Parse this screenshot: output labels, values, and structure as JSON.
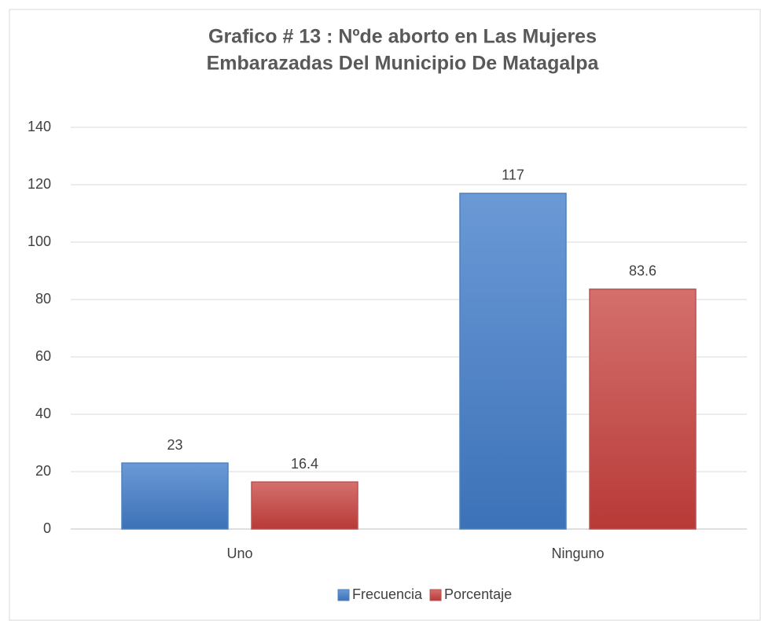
{
  "chart_data": {
    "type": "bar",
    "title": [
      "Grafico # 13 :  Nºde aborto en Las Mujeres",
      "Embarazadas Del Municipio De Matagalpa"
    ],
    "categories": [
      "Uno",
      "Ninguno"
    ],
    "series": [
      {
        "name": "Frecuencia",
        "color": "#4f81bd",
        "values": [
          23,
          117
        ]
      },
      {
        "name": "Porcentaje",
        "color": "#c0504d",
        "values": [
          16.4,
          83.6
        ]
      }
    ],
    "ylim": [
      0,
      140
    ],
    "yticks": [
      0,
      20,
      40,
      60,
      80,
      100,
      120,
      140
    ],
    "grid": true,
    "legend": "bottom"
  }
}
